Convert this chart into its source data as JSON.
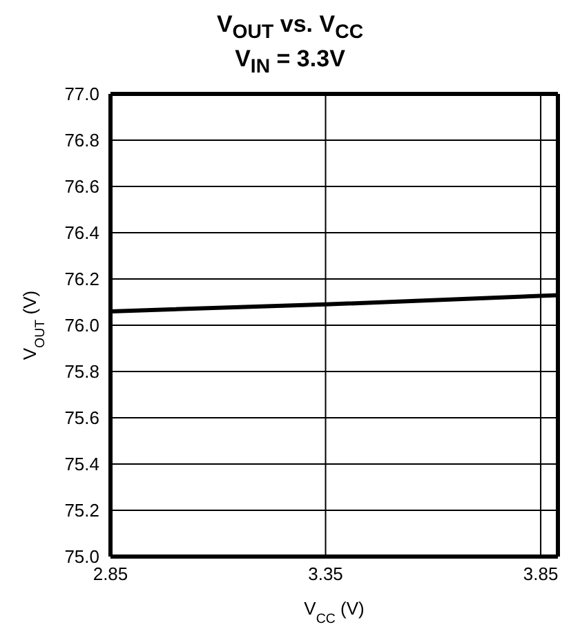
{
  "chart_data": {
    "type": "line",
    "title": "V$_{OUT}$ vs. V$_{CC}$",
    "subtitle": "V$_{IN}$ = 3.3V",
    "xlabel": "V$_{CC}$ (V)",
    "ylabel": "V$_{OUT}$ (V)",
    "x": [
      2.85,
      3.35,
      3.89
    ],
    "series": [
      {
        "color": "#000000",
        "values": [
          76.06,
          76.09,
          76.13
        ]
      }
    ],
    "xlim": [
      2.85,
      3.89
    ],
    "xticks": [
      2.85,
      3.35,
      3.85
    ],
    "ylim": [
      75.0,
      77.0
    ],
    "yticks": [
      {
        "value": 75.0,
        "label": "75.0"
      },
      {
        "value": 75.2,
        "label": "75.2"
      },
      {
        "value": 75.4,
        "label": "75.4"
      },
      {
        "value": 75.6,
        "label": "75.6"
      },
      {
        "value": 75.8,
        "label": "75.8"
      },
      {
        "value": 76.0,
        "label": "76.0"
      },
      {
        "value": 76.2,
        "label": "76.2"
      },
      {
        "value": 76.4,
        "label": "76.4"
      },
      {
        "value": 76.6,
        "label": "76.6"
      },
      {
        "value": 76.8,
        "label": "76.8"
      },
      {
        "value": 77.0,
        "label": "77.0"
      }
    ],
    "grid": true,
    "marker": "none",
    "line_style": "solid"
  }
}
